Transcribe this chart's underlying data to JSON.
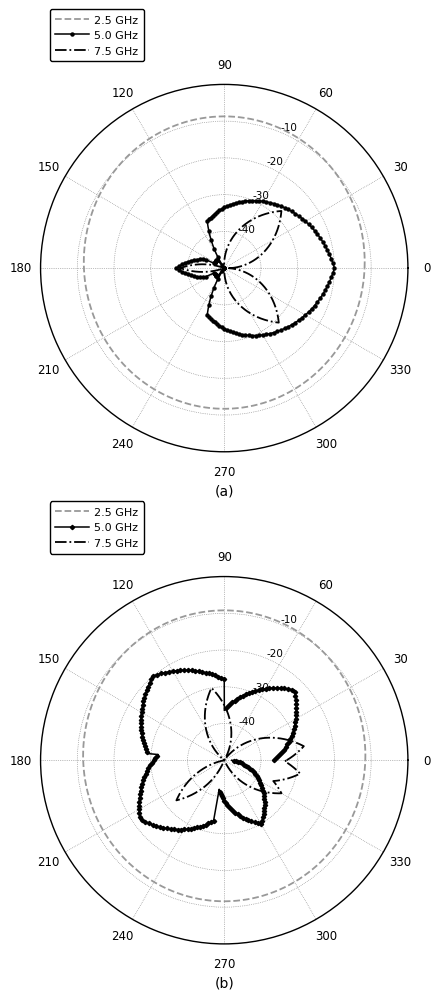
{
  "title_a": "(a)",
  "title_b": "(b)",
  "r_ticks": [
    -10,
    -20,
    -30,
    -40
  ],
  "r_min": -50,
  "r_max": 0,
  "angle_labels": [
    "0",
    "30",
    "60",
    "90",
    "120",
    "150",
    "180",
    "210",
    "240",
    "270",
    "300",
    "330"
  ],
  "legend_labels_a": [
    "2.5 GHz",
    "5.0 GHz",
    "7.5 GHz"
  ],
  "legend_labels_b": [
    "2.5 GHz",
    "5.0 GHz",
    "7.5 GHz"
  ],
  "gray_color": "#999999",
  "black_color": "#000000",
  "background_color": "#ffffff"
}
